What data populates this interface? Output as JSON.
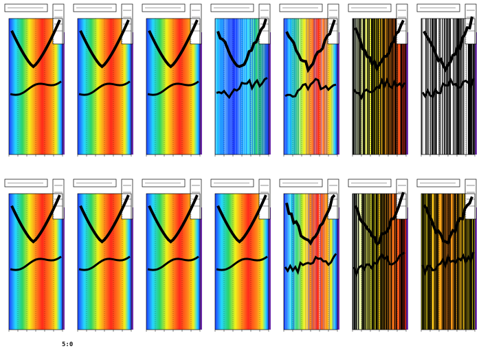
{
  "footer": {
    "label": "5:0"
  },
  "chart_data": {
    "type": "heatmap",
    "rows": 2,
    "cols": 7,
    "colors": {
      "blue": "#1f3cff",
      "cyan": "#26d6ff",
      "green": "#2ad46a",
      "yellow": "#f2f21a",
      "orange": "#ff8a1a",
      "red": "#ff2a1a",
      "purple": "#6a2aa8",
      "curve": "#000000"
    },
    "panels": [
      {
        "row": 0,
        "col": 0,
        "style": "smooth"
      },
      {
        "row": 0,
        "col": 1,
        "style": "smooth"
      },
      {
        "row": 0,
        "col": 2,
        "style": "smooth"
      },
      {
        "row": 0,
        "col": 3,
        "style": "noisy-blue"
      },
      {
        "row": 0,
        "col": 4,
        "style": "noisy"
      },
      {
        "row": 0,
        "col": 5,
        "style": "very-noisy"
      },
      {
        "row": 0,
        "col": 6,
        "style": "very-noisy-white"
      },
      {
        "row": 1,
        "col": 0,
        "style": "smooth"
      },
      {
        "row": 1,
        "col": 1,
        "style": "smooth"
      },
      {
        "row": 1,
        "col": 2,
        "style": "smooth"
      },
      {
        "row": 1,
        "col": 3,
        "style": "smooth"
      },
      {
        "row": 1,
        "col": 4,
        "style": "noisy"
      },
      {
        "row": 1,
        "col": 5,
        "style": "very-noisy"
      },
      {
        "row": 1,
        "col": 6,
        "style": "very-noisy-yellow"
      }
    ]
  }
}
